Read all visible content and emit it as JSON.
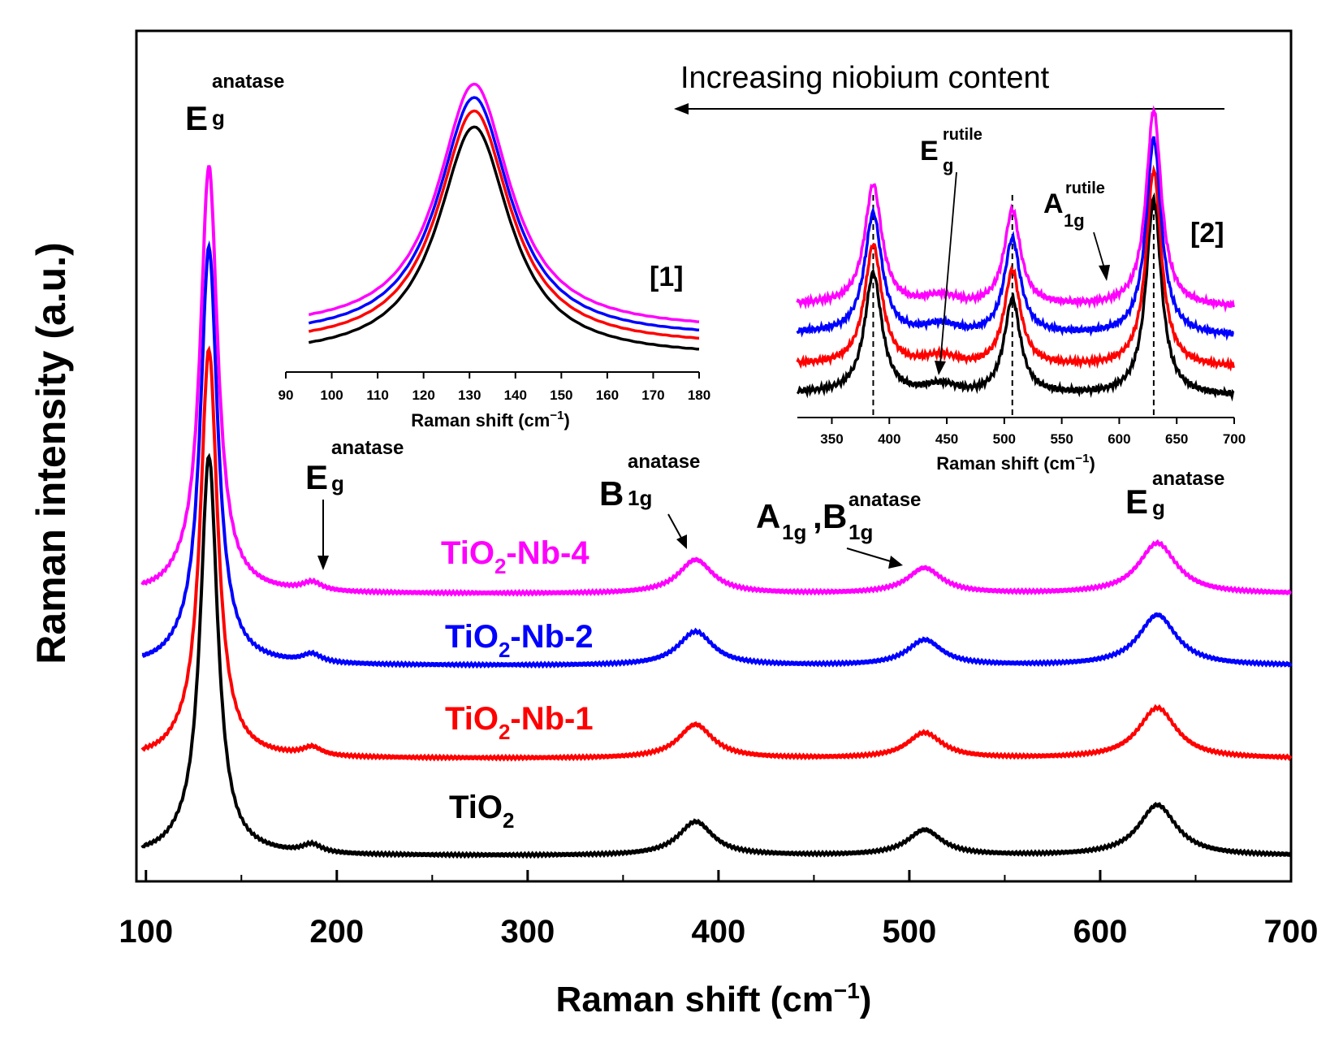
{
  "figure_title": "",
  "chart_data": [
    {
      "type": "line",
      "panel": "main",
      "title": "",
      "xlabel": "Raman shift (cm",
      "xlabel_sup": "−1",
      "xlabel_close": ")",
      "ylabel": "Raman intensity (a.u.)",
      "xlim": [
        95,
        700
      ],
      "xticks": [
        100,
        200,
        300,
        400,
        500,
        600,
        700
      ],
      "ylim": [
        0,
        1
      ],
      "yticks_shown": false,
      "grid": false,
      "series": [
        {
          "name": "TiO2",
          "label": "TiO",
          "sub": "2",
          "suffix": "",
          "color": "#000000",
          "offset": 0.0,
          "peak_scale": 0.86
        },
        {
          "name": "TiO2-Nb-1",
          "label": "TiO",
          "sub": "2",
          "suffix": "-Nb-1",
          "color": "#ff0000",
          "offset": 0.115,
          "peak_scale": 0.88
        },
        {
          "name": "TiO2-Nb-2",
          "label": "TiO",
          "sub": "2",
          "suffix": "-Nb-2",
          "color": "#0000ff",
          "offset": 0.225,
          "peak_scale": 0.9
        },
        {
          "name": "TiO2-Nb-4",
          "label": "TiO",
          "sub": "2",
          "suffix": "-Nb-4",
          "color": "#ff00ff",
          "offset": 0.31,
          "peak_scale": 0.92
        }
      ],
      "peaks": [
        {
          "mode": "Eg",
          "x": 133,
          "height": 0.55,
          "width": 5.5
        },
        {
          "mode": "Eg",
          "x": 187,
          "height": 0.01,
          "width": 6
        },
        {
          "mode": "B1g",
          "x": 388,
          "height": 0.04,
          "width": 11
        },
        {
          "mode": "A1g,B1g",
          "x": 508,
          "height": 0.03,
          "width": 11
        },
        {
          "mode": "Eg",
          "x": 630,
          "height": 0.06,
          "width": 12
        }
      ],
      "annotations": {
        "eg_main": {
          "base": "E",
          "sub": "g",
          "sup": "anatase",
          "x": 133
        },
        "eg_low": {
          "base": "E",
          "sub": "g",
          "sup": "anatase",
          "x": 187
        },
        "b1g": {
          "base": "B",
          "sub": "1g",
          "sup": "anatase",
          "x": 388
        },
        "a1g_b1g": {
          "base1": "A",
          "sub1": "1g",
          "sep": ",",
          "base2": "B",
          "sub2": "1g",
          "sup": "anatase",
          "x": 508
        },
        "eg_high": {
          "base": "E",
          "sub": "g",
          "sup": "anatase",
          "x": 630
        }
      }
    },
    {
      "type": "line",
      "panel": "inset-1",
      "title": "",
      "tag": "[1]",
      "xlabel": "Raman shift (cm",
      "xlabel_sup": "−1",
      "xlabel_close": ")",
      "xlim": [
        90,
        180
      ],
      "xticks": [
        90,
        100,
        110,
        120,
        130,
        140,
        150,
        160,
        170,
        180
      ],
      "peak_center": 131,
      "series_offsets": {
        "TiO2": 0.0,
        "TiO2-Nb-1": 0.04,
        "TiO2-Nb-2": 0.07,
        "TiO2-Nb-4": 0.1
      }
    },
    {
      "type": "line",
      "panel": "inset-2",
      "title": "",
      "tag": "[2]",
      "xlabel": "Raman shift (cm",
      "xlabel_sup": "−1",
      "xlabel_close": ")",
      "xlim": [
        320,
        700
      ],
      "xticks": [
        350,
        400,
        450,
        500,
        550,
        600,
        650,
        700
      ],
      "reference_lines_x": [
        386,
        507,
        630
      ],
      "annotations": {
        "eg_rutile": {
          "base": "E",
          "sub": "g",
          "sup": "rutile",
          "x": 445
        },
        "a1g_rutile": {
          "base": "A",
          "sub": "1g",
          "sup": "rutile",
          "x": 610
        }
      }
    }
  ],
  "arrow_note": "Increasing niobium content"
}
